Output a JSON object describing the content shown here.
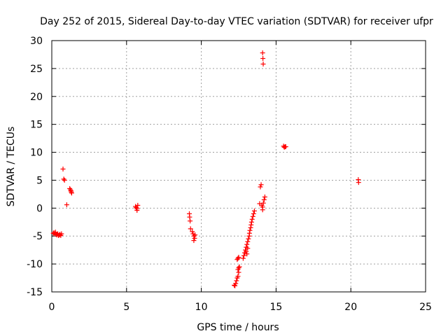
{
  "chart_data": {
    "type": "scatter",
    "title": "Day 252 of 2015, Sidereal Day-to-day VTEC variation (SDTVAR) for receiver ufpr",
    "xlabel": "GPS time / hours",
    "ylabel": "SDTVAR / TECUs",
    "xlim": [
      0,
      25
    ],
    "ylim": [
      -15,
      30
    ],
    "xticks": [
      0,
      5,
      10,
      15,
      20,
      25
    ],
    "yticks": [
      -15,
      -10,
      -5,
      0,
      5,
      10,
      15,
      20,
      25,
      30
    ],
    "grid": true,
    "marker": "+",
    "color": "#ff0000",
    "series": [
      {
        "name": "SDTVAR",
        "points": [
          [
            0.1,
            -4.5
          ],
          [
            0.15,
            -4.4
          ],
          [
            0.2,
            -4.6
          ],
          [
            0.25,
            -4.3
          ],
          [
            0.3,
            -4.7
          ],
          [
            0.35,
            -4.8
          ],
          [
            0.4,
            -4.6
          ],
          [
            0.45,
            -4.9
          ],
          [
            0.5,
            -4.8
          ],
          [
            0.55,
            -4.7
          ],
          [
            0.6,
            -4.9
          ],
          [
            0.65,
            -4.6
          ],
          [
            0.75,
            7.0
          ],
          [
            0.8,
            5.2
          ],
          [
            0.85,
            5.0
          ],
          [
            1.0,
            0.6
          ],
          [
            1.2,
            3.5
          ],
          [
            1.25,
            3.3
          ],
          [
            1.28,
            3.1
          ],
          [
            1.3,
            2.9
          ],
          [
            1.33,
            2.7
          ],
          [
            5.6,
            0.3
          ],
          [
            5.65,
            0.1
          ],
          [
            5.7,
            -0.1
          ],
          [
            5.75,
            0.5
          ],
          [
            5.7,
            -0.4
          ],
          [
            9.2,
            -1.0
          ],
          [
            9.22,
            -1.6
          ],
          [
            9.25,
            -2.3
          ],
          [
            9.28,
            -3.7
          ],
          [
            9.4,
            -4.2
          ],
          [
            9.45,
            -4.6
          ],
          [
            9.5,
            -5.0
          ],
          [
            9.55,
            -5.4
          ],
          [
            9.5,
            -5.8
          ],
          [
            9.58,
            -4.8
          ],
          [
            12.2,
            -13.8
          ],
          [
            12.25,
            -13.9
          ],
          [
            12.3,
            -13.5
          ],
          [
            12.35,
            -13.0
          ],
          [
            12.4,
            -12.5
          ],
          [
            12.45,
            -12.2
          ],
          [
            12.5,
            -11.5
          ],
          [
            12.45,
            -11.0
          ],
          [
            12.5,
            -10.7
          ],
          [
            12.55,
            -10.5
          ],
          [
            12.4,
            -9.2
          ],
          [
            12.45,
            -9.0
          ],
          [
            12.5,
            -8.8
          ],
          [
            12.8,
            -9.0
          ],
          [
            12.85,
            -8.5
          ],
          [
            12.9,
            -8.0
          ],
          [
            12.95,
            -7.5
          ],
          [
            13.0,
            -7.0
          ],
          [
            13.05,
            -6.5
          ],
          [
            13.1,
            -6.0
          ],
          [
            13.15,
            -5.5
          ],
          [
            13.2,
            -5.0
          ],
          [
            13.22,
            -4.5
          ],
          [
            13.25,
            -4.0
          ],
          [
            13.3,
            -3.5
          ],
          [
            13.33,
            -3.0
          ],
          [
            13.36,
            -2.5
          ],
          [
            13.4,
            -2.0
          ],
          [
            13.45,
            -1.5
          ],
          [
            13.5,
            -1.0
          ],
          [
            13.55,
            -0.5
          ],
          [
            13.0,
            -7.8
          ],
          [
            13.1,
            -7.2
          ],
          [
            13.05,
            -8.2
          ],
          [
            13.9,
            0.8
          ],
          [
            13.95,
            3.8
          ],
          [
            14.0,
            4.2
          ],
          [
            14.05,
            0.5
          ],
          [
            14.1,
            -0.3
          ],
          [
            14.1,
            0.2
          ],
          [
            14.15,
            0.9
          ],
          [
            14.2,
            1.5
          ],
          [
            14.25,
            2.0
          ],
          [
            14.1,
            27.8
          ],
          [
            14.12,
            26.8
          ],
          [
            14.14,
            25.8
          ],
          [
            15.5,
            11.1
          ],
          [
            15.55,
            10.9
          ],
          [
            15.6,
            11.0
          ],
          [
            15.65,
            11.0
          ],
          [
            20.5,
            5.1
          ],
          [
            20.52,
            4.6
          ]
        ]
      }
    ]
  }
}
